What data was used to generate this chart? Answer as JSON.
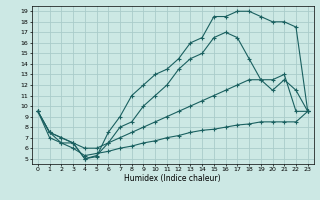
{
  "xlabel": "Humidex (Indice chaleur)",
  "bg_color": "#cce8e4",
  "grid_color": "#aaccca",
  "line_color": "#1a6060",
  "xlim": [
    -0.5,
    23.5
  ],
  "ylim": [
    4.5,
    19.5
  ],
  "xticks": [
    0,
    1,
    2,
    3,
    4,
    5,
    6,
    7,
    8,
    9,
    10,
    11,
    12,
    13,
    14,
    15,
    16,
    17,
    18,
    19,
    20,
    21,
    22,
    23
  ],
  "yticks": [
    5,
    6,
    7,
    8,
    9,
    10,
    11,
    12,
    13,
    14,
    15,
    16,
    17,
    18,
    19
  ],
  "curves": [
    {
      "x": [
        0,
        1,
        2,
        3,
        4,
        5,
        6,
        7,
        8,
        9,
        10,
        11,
        12,
        13,
        14,
        15,
        16,
        17,
        18,
        19,
        20,
        21,
        22,
        23
      ],
      "y": [
        9.5,
        7.5,
        7.0,
        6.5,
        5.0,
        5.2,
        7.5,
        9.0,
        11.0,
        12.0,
        13.0,
        13.5,
        14.5,
        16.0,
        16.5,
        18.5,
        18.5,
        19.0,
        19.0,
        18.5,
        18.0,
        18.0,
        17.5,
        9.5
      ]
    },
    {
      "x": [
        0,
        1,
        2,
        3,
        4,
        5,
        6,
        7,
        8,
        9,
        10,
        11,
        12,
        13,
        14,
        15,
        16,
        17,
        18,
        19,
        20,
        21,
        22,
        23
      ],
      "y": [
        9.5,
        7.5,
        7.0,
        6.5,
        5.0,
        5.3,
        6.5,
        8.0,
        8.5,
        10.0,
        11.0,
        12.0,
        13.5,
        14.5,
        15.0,
        16.5,
        17.0,
        16.5,
        14.5,
        12.5,
        11.5,
        12.5,
        11.5,
        9.5
      ]
    },
    {
      "x": [
        0,
        1,
        2,
        3,
        4,
        5,
        6,
        7,
        8,
        9,
        10,
        11,
        12,
        13,
        14,
        15,
        16,
        17,
        18,
        19,
        20,
        21,
        22,
        23
      ],
      "y": [
        9.5,
        7.5,
        6.5,
        6.5,
        6.0,
        6.0,
        6.5,
        7.0,
        7.5,
        8.0,
        8.5,
        9.0,
        9.5,
        10.0,
        10.5,
        11.0,
        11.5,
        12.0,
        12.5,
        12.5,
        12.5,
        13.0,
        9.5,
        9.5
      ]
    },
    {
      "x": [
        0,
        1,
        2,
        3,
        4,
        5,
        6,
        7,
        8,
        9,
        10,
        11,
        12,
        13,
        14,
        15,
        16,
        17,
        18,
        19,
        20,
        21,
        22,
        23
      ],
      "y": [
        9.5,
        7.0,
        6.5,
        6.0,
        5.3,
        5.5,
        5.7,
        6.0,
        6.2,
        6.5,
        6.7,
        7.0,
        7.2,
        7.5,
        7.7,
        7.8,
        8.0,
        8.2,
        8.3,
        8.5,
        8.5,
        8.5,
        8.5,
        9.5
      ]
    }
  ]
}
